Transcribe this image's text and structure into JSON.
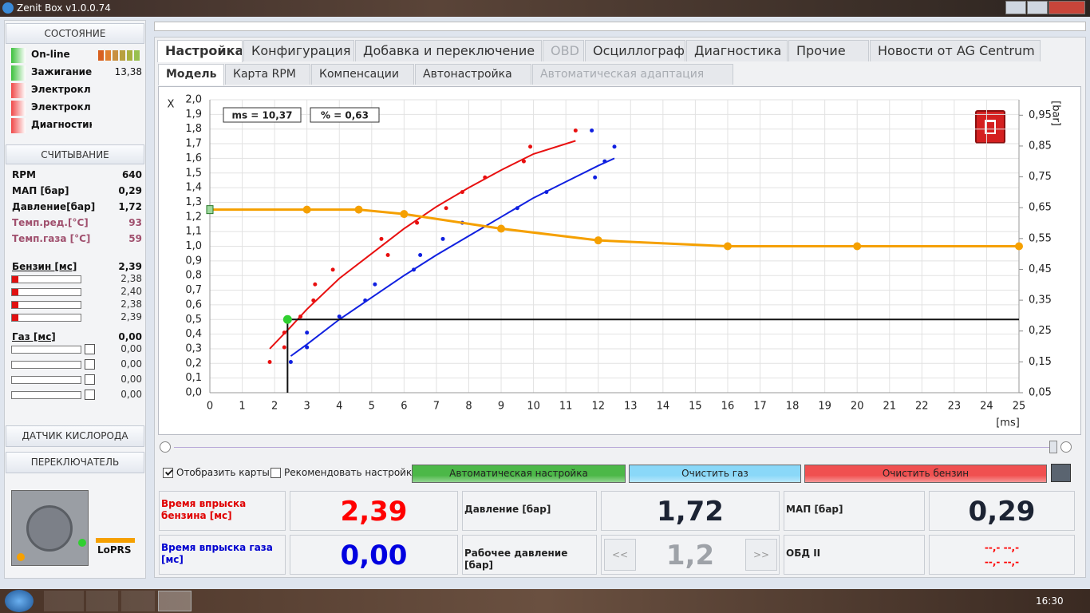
{
  "window": {
    "title": "Zenit Box v1.0.0.74"
  },
  "sidebar": {
    "status": {
      "title": "СОСТОЯНИЕ",
      "items": [
        {
          "label": "On-line",
          "color": "#3cc03c"
        },
        {
          "label": "Зажигание",
          "color": "#3cc03c",
          "value": "13,38"
        },
        {
          "label": "Электрокл",
          "color": "#f04848"
        },
        {
          "label": "Электрокл",
          "color": "#f04848"
        },
        {
          "label": "Диагностика",
          "color": "#f04848"
        }
      ]
    },
    "readings": {
      "title": "СЧИТЫВАНИЕ",
      "rows": [
        {
          "label": "RPM",
          "value": "640",
          "color": "#111111"
        },
        {
          "label": "МАП [бар]",
          "value": "0,29",
          "color": "#111111"
        },
        {
          "label": "Давление[бар]",
          "value": "1,72",
          "color": "#111111"
        },
        {
          "label": "Темп.ред.[°C]",
          "value": "93",
          "color": "#a0506e"
        },
        {
          "label": "Темп.газа [°C]",
          "value": "59",
          "color": "#a0506e"
        }
      ]
    },
    "petrol": {
      "label": "Бензин [мс]",
      "value": "2,39",
      "injectors": [
        "2,38",
        "2,40",
        "2,38",
        "2,39"
      ]
    },
    "gas": {
      "label": "Газ [мс]",
      "value": "0,00",
      "injectors": [
        "0,00",
        "0,00",
        "0,00",
        "0,00"
      ]
    },
    "oxygen": {
      "title": "ДАТЧИК КИСЛОРОДА"
    },
    "switch": {
      "title": "ПЕРЕКЛЮЧАТЕЛЬ",
      "mode": "LoPRS"
    }
  },
  "tabs": [
    {
      "label": "Настройка",
      "state": "active"
    },
    {
      "label": "Конфигурация",
      "state": "normal"
    },
    {
      "label": "Добавка и переключение",
      "state": "normal"
    },
    {
      "label": "OBD",
      "state": "disabled"
    },
    {
      "label": "Осциллограф",
      "state": "normal"
    },
    {
      "label": "Диагностика",
      "state": "normal"
    },
    {
      "label": "Прочие",
      "state": "normal"
    },
    {
      "label": "Новости от AG Centrum",
      "state": "normal"
    }
  ],
  "subtabs": [
    {
      "label": "Модель",
      "state": "active"
    },
    {
      "label": "Карта RPM",
      "state": "normal"
    },
    {
      "label": "Компенсации",
      "state": "normal"
    },
    {
      "label": "Автонастройка",
      "state": "normal"
    },
    {
      "label": "Автоматическая адаптация",
      "state": "disabled"
    }
  ],
  "chart": {
    "type": "scatter",
    "x_label": "[ms]",
    "y_label": "X",
    "y2_label": "[bar]",
    "annotations": [
      "ms = 10,37",
      "% = 0,63"
    ],
    "xlim": [
      0,
      25
    ],
    "xticks": [
      0,
      1,
      2,
      3,
      4,
      5,
      6,
      7,
      8,
      9,
      10,
      11,
      12,
      13,
      14,
      15,
      16,
      17,
      18,
      19,
      20,
      21,
      22,
      23,
      24,
      25
    ],
    "ylim": [
      0,
      2.0
    ],
    "yticks": [
      {
        "value": 0,
        "label": "0,0"
      },
      {
        "value": 0.1,
        "label": "0,1"
      },
      {
        "value": 0.2,
        "label": "0,2"
      },
      {
        "value": 0.3,
        "label": "0,3"
      },
      {
        "value": 0.4,
        "label": "0,4"
      },
      {
        "value": 0.5,
        "label": "0,5"
      },
      {
        "value": 0.6,
        "label": "0,6"
      },
      {
        "value": 0.7,
        "label": "0,7"
      },
      {
        "value": 0.8,
        "label": "0,8"
      },
      {
        "value": 0.9,
        "label": "0,9"
      },
      {
        "value": 1.0,
        "label": "1,0"
      },
      {
        "value": 1.1,
        "label": "1,1"
      },
      {
        "value": 1.2,
        "label": "1,2"
      },
      {
        "value": 1.3,
        "label": "1,3"
      },
      {
        "value": 1.4,
        "label": "1,4"
      },
      {
        "value": 1.5,
        "label": "1,5"
      },
      {
        "value": 1.6,
        "label": "1,6"
      },
      {
        "value": 1.7,
        "label": "1,7"
      },
      {
        "value": 1.8,
        "label": "1,8"
      },
      {
        "value": 1.9,
        "label": "1,9"
      },
      {
        "value": 2.0,
        "label": "2,0"
      }
    ],
    "y2lim": [
      0.05,
      1.0
    ],
    "y2ticks": [
      {
        "value": 0.05,
        "label": "0,05"
      },
      {
        "value": 0.15,
        "label": "0,15"
      },
      {
        "value": 0.25,
        "label": "0,25"
      },
      {
        "value": 0.35,
        "label": "0,35"
      },
      {
        "value": 0.45,
        "label": "0,45"
      },
      {
        "value": 0.55,
        "label": "0,55"
      },
      {
        "value": 0.65,
        "label": "0,65"
      },
      {
        "value": 0.75,
        "label": "0,75"
      },
      {
        "value": 0.85,
        "label": "0,85"
      },
      {
        "value": 0.95,
        "label": "0,95"
      }
    ],
    "grid": true,
    "series": [
      {
        "style": "points",
        "color": "#e81010",
        "x": [
          1.85,
          2.3,
          2.3,
          2.8,
          3.2,
          3.25,
          3.8,
          5.3,
          5.5,
          6.4,
          7.3,
          7.8,
          8.5,
          9.7,
          9.9,
          11.3
        ],
        "y": [
          0.21,
          0.31,
          0.41,
          0.52,
          0.63,
          0.74,
          0.84,
          1.05,
          0.94,
          1.16,
          1.26,
          1.37,
          1.47,
          1.58,
          1.68,
          1.79
        ]
      },
      {
        "style": "points",
        "color": "#1020e0",
        "x": [
          2.5,
          3.0,
          3.0,
          4.0,
          4.8,
          5.1,
          6.3,
          6.5,
          7.2,
          7.8,
          9.5,
          10.4,
          11.9,
          12.2,
          12.5,
          11.8
        ],
        "y": [
          0.21,
          0.31,
          0.41,
          0.52,
          0.63,
          0.74,
          0.84,
          0.94,
          1.05,
          1.16,
          1.26,
          1.37,
          1.47,
          1.58,
          1.68,
          1.79
        ]
      },
      {
        "style": "line",
        "color": "#e81010",
        "x": [
          1.85,
          2.5,
          3,
          4,
          5,
          6,
          7,
          8,
          9,
          10,
          11.3
        ],
        "y": [
          0.3,
          0.45,
          0.57,
          0.78,
          0.95,
          1.12,
          1.27,
          1.4,
          1.52,
          1.63,
          1.72
        ]
      },
      {
        "style": "line",
        "color": "#1020e0",
        "x": [
          2.5,
          3,
          4,
          5,
          6,
          7,
          8,
          9,
          10,
          11,
          12,
          12.5
        ],
        "y": [
          0.25,
          0.33,
          0.5,
          0.65,
          0.8,
          0.94,
          1.07,
          1.2,
          1.33,
          1.44,
          1.55,
          1.6
        ]
      },
      {
        "style": "line-markers",
        "color": "#f5a000",
        "x": [
          0,
          3,
          4.6,
          6,
          9,
          12,
          16,
          20,
          25
        ],
        "y": [
          1.25,
          1.25,
          1.25,
          1.22,
          1.12,
          1.04,
          1.0,
          1.0,
          1.0
        ]
      }
    ],
    "cursor": {
      "x": 2.4,
      "y": 0.5,
      "color": "#30d030"
    }
  },
  "controls": {
    "checkboxes": [
      {
        "label": "Отобразить карты",
        "checked": true
      },
      {
        "label": "Рекомендовать настройки",
        "checked": false
      }
    ],
    "buttons": [
      {
        "label": "Автоматическая настройка",
        "color": "#4cb848"
      },
      {
        "label": "Очистить газ",
        "color": "#8ad8f8"
      },
      {
        "label": "Очистить бензин",
        "color": "#f05050"
      }
    ]
  },
  "gauges": [
    {
      "label": "Время впрыска бензина [мс]",
      "label_color": "#e00000",
      "value": "2,39",
      "color": "#ff0000"
    },
    {
      "label": "Давление [бар]",
      "label_color": "#222222",
      "value": "1,72",
      "color": "#1c2333"
    },
    {
      "label": "МАП [бар]",
      "label_color": "#222222",
      "value": "0,29",
      "color": "#1c2333"
    },
    {
      "label": "Время впрыска газа [мс]",
      "label_color": "#0000d0",
      "value": "0,00",
      "color": "#0000e0"
    },
    {
      "label": "Рабочее давление [бар]",
      "label_color": "#222222",
      "value": "1,2",
      "color": "#9ea2a8",
      "buttons": [
        "<<",
        ">>"
      ]
    },
    {
      "label": "ОБД II",
      "label_color": "#222222",
      "value": [
        "--,- --,-",
        "--,- --,-"
      ],
      "color": "#ff0000"
    }
  ],
  "taskbar": {
    "time": "16:30"
  }
}
